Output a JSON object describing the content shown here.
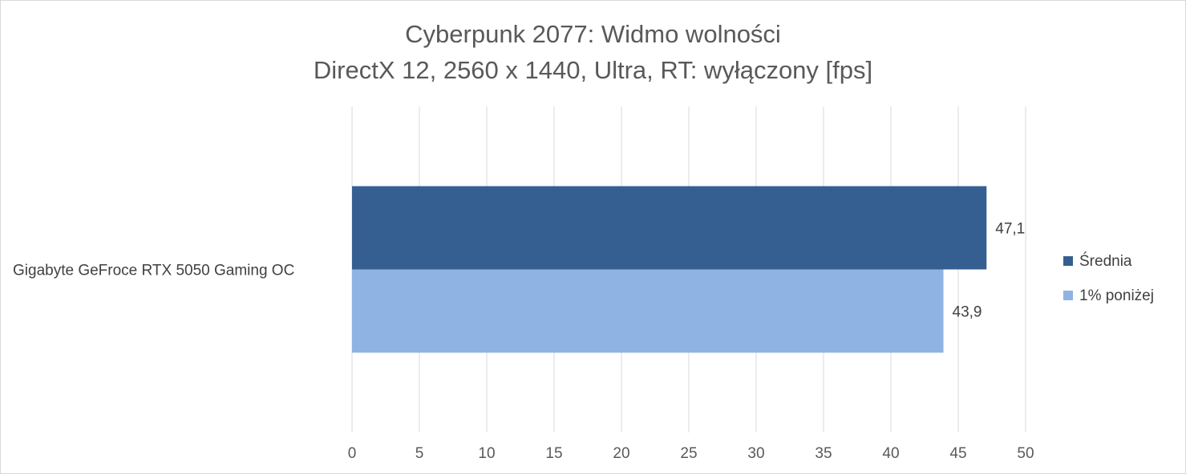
{
  "chart_data": {
    "type": "bar",
    "orientation": "horizontal",
    "title": "Cyberpunk 2077: Widmo wolności",
    "subtitle": "DirectX 12, 2560 x 1440, Ultra, RT: wyłączony [fps]",
    "categories": [
      "Gigabyte GeFroce RTX 5050 Gaming OC"
    ],
    "series": [
      {
        "name": "Średnia",
        "values": [
          47.1
        ],
        "labels": [
          "47,1"
        ],
        "color": "#355F91"
      },
      {
        "name": "1% poniżej",
        "values": [
          43.9
        ],
        "labels": [
          "43,9"
        ],
        "color": "#8FB3E2"
      }
    ],
    "xlim": [
      0,
      50
    ],
    "xticks": [
      "0",
      "5",
      "10",
      "15",
      "20",
      "25",
      "30",
      "35",
      "40",
      "45",
      "50"
    ],
    "grid": true,
    "legend_position": "right",
    "gridline_color": "#d9d9d9"
  }
}
